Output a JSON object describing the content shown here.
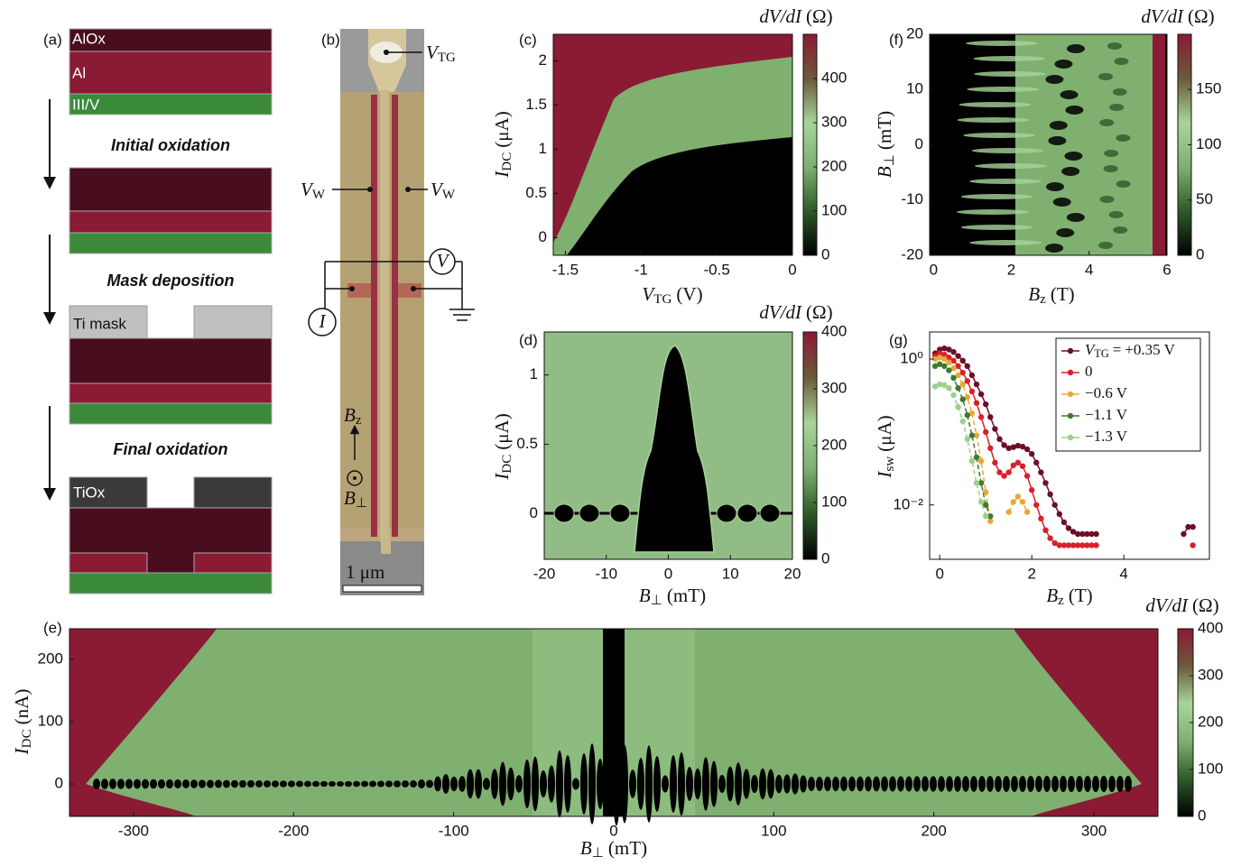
{
  "diagram_a": {
    "panel": "(a)",
    "layers": [
      "AlOx",
      "Al",
      "III/V"
    ],
    "steps": [
      "Initial oxidation",
      "Mask deposition",
      "Final oxidation"
    ],
    "mask_labels": [
      "Ti mask",
      "TiOx"
    ]
  },
  "device_b": {
    "panel": "(b)",
    "gate": {
      "symbol": "V",
      "sub": "TG"
    },
    "wire_left": {
      "symbol": "V",
      "sub": "W"
    },
    "wire_right": {
      "symbol": "V",
      "sub": "W"
    },
    "voltmeter": "V",
    "current_source": "I",
    "field_z": {
      "symbol": "B",
      "sub": "z"
    },
    "field_perp": {
      "symbol": "B",
      "sub": "⊥"
    },
    "scale_bar": "1 μm"
  },
  "chart_data": [
    {
      "type": "heatmap",
      "panel": "(c)",
      "xlabel": {
        "symbol": "V",
        "sub": "TG",
        "unit": "(V)"
      },
      "ylabel": {
        "symbol": "I",
        "sub": "DC",
        "unit": "(μA)"
      },
      "xlim": [
        -1.58,
        0
      ],
      "xticks": [
        -1.5,
        -1,
        -0.5,
        0
      ],
      "ylim": [
        -0.2,
        2.3
      ],
      "yticks": [
        0,
        0.5,
        1,
        1.5,
        2
      ],
      "colorbar": {
        "label": {
          "quantity": "dV/dI",
          "unit": "(Ω)"
        },
        "lim": [
          0,
          500
        ],
        "ticks": [
          0,
          100,
          200,
          300,
          400
        ]
      },
      "colormap": [
        "#000000",
        "#2f5a2a",
        "#7fb070",
        "#a8d49a",
        "#6b5a3a",
        "#8b1a35"
      ]
    },
    {
      "type": "heatmap",
      "panel": "(d)",
      "xlabel": {
        "symbol": "B",
        "sub": "⊥",
        "unit": "(mT)"
      },
      "ylabel": {
        "symbol": "I",
        "sub": "DC",
        "unit": "(μA)"
      },
      "xlim": [
        -20,
        20
      ],
      "xticks": [
        -20,
        -10,
        0,
        10,
        20
      ],
      "ylim": [
        -0.33,
        1.31
      ],
      "yticks": [
        0,
        0.5,
        1
      ],
      "colorbar": {
        "label": {
          "quantity": "dV/dI",
          "unit": "(Ω)"
        },
        "lim": [
          0,
          400
        ],
        "ticks": [
          0,
          100,
          200,
          300,
          400
        ]
      },
      "colormap": [
        "#000000",
        "#2f5a2a",
        "#7fb070",
        "#a8d49a",
        "#6b5a3a",
        "#8b1a35"
      ]
    },
    {
      "type": "heatmap",
      "panel": "(e)",
      "xlabel": {
        "symbol": "B",
        "sub": "⊥",
        "unit": "(mT)"
      },
      "ylabel": {
        "symbol": "I",
        "sub": "DC",
        "unit": "(nA)"
      },
      "xlim": [
        -340,
        340
      ],
      "xticks": [
        -300,
        -200,
        -100,
        0,
        100,
        200,
        300
      ],
      "ylim": [
        -52,
        249
      ],
      "yticks": [
        0,
        100,
        200
      ],
      "colorbar": {
        "label": {
          "quantity": "dV/dI",
          "unit": "(Ω)"
        },
        "lim": [
          0,
          400
        ],
        "ticks": [
          0,
          100,
          200,
          300,
          400
        ]
      },
      "colormap": [
        "#000000",
        "#2f5a2a",
        "#7fb070",
        "#a8d49a",
        "#6b5a3a",
        "#8b1a35"
      ]
    },
    {
      "type": "heatmap",
      "panel": "(f)",
      "xlabel": {
        "symbol": "B",
        "sub": "z",
        "unit": "(T)"
      },
      "ylabel": {
        "symbol": "B",
        "sub": "⊥",
        "unit": "(mT)"
      },
      "xlim": [
        -0.1,
        6
      ],
      "xticks": [
        0,
        2,
        4,
        6
      ],
      "ylim": [
        -20,
        20
      ],
      "yticks": [
        -20,
        -10,
        0,
        10,
        20
      ],
      "colorbar": {
        "label": {
          "quantity": "dV/dI",
          "unit": "(Ω)"
        },
        "lim": [
          0,
          200
        ],
        "ticks": [
          0,
          50,
          100,
          150
        ]
      },
      "colormap": [
        "#000000",
        "#2f5a2a",
        "#7fb070",
        "#a8d49a",
        "#6b5a3a",
        "#8b1a35"
      ]
    },
    {
      "type": "line",
      "panel": "(g)",
      "xlabel": {
        "symbol": "B",
        "sub": "z",
        "unit": "(T)"
      },
      "ylabel": {
        "symbol": "I",
        "sub": "sw",
        "unit": "(μA)"
      },
      "xlim": [
        -0.22,
        5.86
      ],
      "xticks": [
        0,
        2,
        4
      ],
      "ylim": [
        0.0018,
        2.35
      ],
      "ylog": true,
      "yticks": [
        {
          "value": 1,
          "label": "10⁰"
        },
        {
          "value": 0.01,
          "label": "10⁻²"
        }
      ],
      "legend_lead": {
        "symbol": "V",
        "sub": "TG",
        "relation": "="
      },
      "series": [
        {
          "name": "+0.35 V",
          "color": "#6b0f25",
          "x": [
            -0.1,
            0,
            0.1,
            0.2,
            0.3,
            0.4,
            0.5,
            0.6,
            0.7,
            0.8,
            0.9,
            1.0,
            1.1,
            1.2,
            1.3,
            1.4,
            1.5,
            1.6,
            1.7,
            1.8,
            1.9,
            2.0,
            2.1,
            2.2,
            2.3,
            2.4,
            2.5,
            2.6,
            2.7,
            2.8,
            2.9,
            3.0,
            3.1,
            3.2,
            3.3,
            3.4,
            null,
            5.3,
            5.4,
            5.5
          ],
          "values": [
            1.2,
            1.35,
            1.4,
            1.35,
            1.25,
            1.1,
            0.95,
            0.8,
            0.6,
            0.45,
            0.33,
            0.24,
            0.16,
            0.11,
            0.08,
            0.066,
            0.06,
            0.062,
            0.065,
            0.063,
            0.058,
            0.05,
            0.038,
            0.028,
            0.02,
            0.014,
            0.01,
            0.0075,
            0.0058,
            0.0048,
            0.0043,
            0.004,
            0.004,
            0.004,
            0.004,
            0.004,
            null,
            0.004,
            0.005,
            0.005
          ]
        },
        {
          "name": "0",
          "color": "#d9202a",
          "x": [
            -0.1,
            0,
            0.1,
            0.2,
            0.3,
            0.4,
            0.5,
            0.6,
            0.7,
            0.8,
            0.9,
            1.0,
            1.1,
            1.2,
            1.3,
            1.4,
            1.5,
            1.6,
            1.7,
            1.8,
            1.9,
            2.0,
            2.1,
            2.2,
            2.3,
            2.4,
            2.5,
            2.6,
            2.7,
            2.8,
            2.9,
            3.0,
            3.1,
            3.2,
            3.3,
            3.4,
            null,
            5.5
          ],
          "values": [
            1.1,
            1.2,
            1.15,
            1.05,
            0.95,
            0.8,
            0.65,
            0.5,
            0.36,
            0.25,
            0.16,
            0.1,
            0.06,
            0.038,
            0.028,
            0.025,
            0.028,
            0.035,
            0.038,
            0.034,
            0.025,
            0.016,
            0.01,
            0.0065,
            0.0045,
            0.0035,
            0.003,
            0.0028,
            0.0028,
            0.0028,
            0.0028,
            0.0028,
            0.0028,
            0.0028,
            0.0028,
            0.0028,
            null,
            0.0028
          ]
        },
        {
          "name": "−0.6 V",
          "color": "#e8a838",
          "x": [
            -0.1,
            0,
            0.1,
            0.2,
            0.3,
            0.4,
            0.5,
            0.6,
            0.7,
            0.8,
            0.9,
            1.0,
            1.1,
            null,
            1.5,
            1.6,
            1.7,
            1.8,
            1.9
          ],
          "values": [
            1.0,
            1.05,
            1.0,
            0.9,
            0.75,
            0.6,
            0.45,
            0.3,
            0.18,
            0.09,
            0.04,
            0.015,
            0.006,
            null,
            0.008,
            0.011,
            0.013,
            0.011,
            0.008
          ]
        },
        {
          "name": "−1.1 V",
          "color": "#3d7a2e",
          "x": [
            -0.1,
            0,
            0.1,
            0.2,
            0.3,
            0.4,
            0.5,
            0.6,
            0.7,
            0.8,
            0.9,
            1.0,
            1.1
          ],
          "values": [
            0.8,
            0.85,
            0.8,
            0.7,
            0.55,
            0.4,
            0.28,
            0.17,
            0.09,
            0.045,
            0.02,
            0.01,
            0.007
          ]
        },
        {
          "name": "−1.3 V",
          "color": "#9ccf8a",
          "x": [
            -0.1,
            0,
            0.1,
            0.2,
            0.3,
            0.4,
            0.5,
            0.6,
            0.7,
            0.8,
            0.9,
            1.0
          ],
          "values": [
            0.42,
            0.45,
            0.44,
            0.4,
            0.32,
            0.22,
            0.14,
            0.08,
            0.04,
            0.02,
            0.011,
            0.007
          ]
        }
      ]
    }
  ]
}
